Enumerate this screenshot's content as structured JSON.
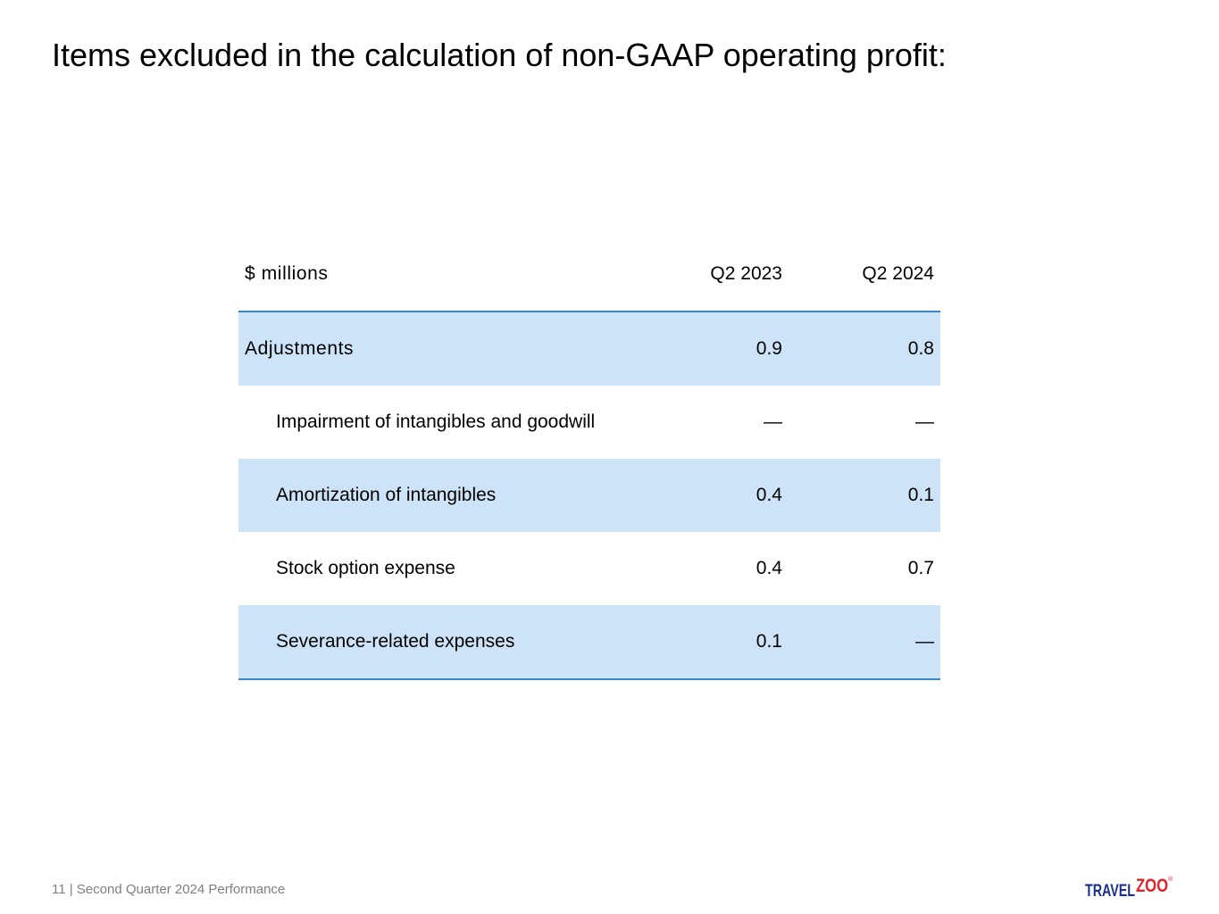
{
  "title": "Items excluded in the calculation of non-GAAP operating profit:",
  "table": {
    "headers": {
      "label": "$ millions",
      "col1": "Q2 2023",
      "col2": "Q2 2024"
    },
    "rows": [
      {
        "label": "Adjustments",
        "q2_2023": "0.9",
        "q2_2024": "0.8"
      },
      {
        "label": "Impairment of intangibles and goodwill",
        "q2_2023": "—",
        "q2_2024": "—"
      },
      {
        "label": "Amortization of intangibles",
        "q2_2023": "0.4",
        "q2_2024": "0.1"
      },
      {
        "label": "Stock option expense",
        "q2_2023": "0.4",
        "q2_2024": "0.7"
      },
      {
        "label": "Severance-related expenses",
        "q2_2023": "0.1",
        "q2_2024": "—"
      }
    ]
  },
  "footer": {
    "text": "11 | Second Quarter 2024 Performance"
  },
  "logo": {
    "part1": "TRAVEL",
    "part2": "ZOO",
    "mark": "®",
    "color_primary": "#1b2f8f",
    "color_accent": "#e4212b"
  }
}
